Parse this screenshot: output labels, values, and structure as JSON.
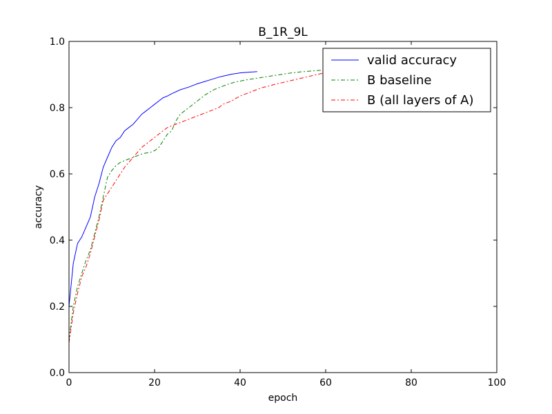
{
  "chart_data": {
    "type": "line",
    "title": "B_1R_9L",
    "xlabel": "epoch",
    "ylabel": "accuracy",
    "xlim": [
      0,
      100
    ],
    "ylim": [
      0.0,
      1.0
    ],
    "xticks": [
      "0",
      "20",
      "40",
      "60",
      "80",
      "100"
    ],
    "yticks": [
      "0.0",
      "0.2",
      "0.4",
      "0.6",
      "0.8",
      "1.0"
    ],
    "grid": false,
    "legend_position": "top-right",
    "series": [
      {
        "name": "valid accuracy",
        "color": "#0000ff",
        "style": "solid",
        "x": [
          0,
          1,
          2,
          3,
          4,
          5,
          6,
          7,
          8,
          9,
          10,
          11,
          12,
          13,
          14,
          15,
          16,
          17,
          18,
          19,
          20,
          21,
          22,
          23,
          24,
          25,
          26,
          27,
          28,
          29,
          30,
          31,
          32,
          33,
          34,
          35,
          36,
          37,
          38,
          39,
          40,
          41,
          42,
          43,
          44
        ],
        "y": [
          0.2,
          0.33,
          0.39,
          0.41,
          0.44,
          0.47,
          0.53,
          0.57,
          0.62,
          0.65,
          0.68,
          0.7,
          0.71,
          0.73,
          0.74,
          0.75,
          0.765,
          0.78,
          0.79,
          0.8,
          0.81,
          0.82,
          0.83,
          0.835,
          0.842,
          0.848,
          0.854,
          0.858,
          0.862,
          0.867,
          0.872,
          0.876,
          0.88,
          0.884,
          0.888,
          0.892,
          0.895,
          0.898,
          0.901,
          0.903,
          0.905,
          0.906,
          0.907,
          0.908,
          0.909
        ]
      },
      {
        "name": "B baseline",
        "color": "#008000",
        "style": "dashdot",
        "x": [
          0,
          1,
          2,
          3,
          4,
          5,
          6,
          7,
          8,
          9,
          10,
          11,
          12,
          13,
          14,
          15,
          16,
          17,
          18,
          19,
          20,
          21,
          22,
          23,
          24,
          25,
          26,
          27,
          28,
          29,
          30,
          31,
          32,
          33,
          34,
          35,
          36,
          37,
          38,
          39,
          40,
          41,
          42,
          43,
          44,
          45,
          46,
          47,
          48,
          49,
          50,
          51,
          52,
          53,
          54,
          55,
          56,
          57,
          58,
          59,
          60,
          61,
          62,
          63,
          64,
          65,
          66,
          67,
          68,
          69,
          70,
          71,
          72,
          73,
          74,
          75,
          76,
          77,
          78,
          79,
          80,
          81,
          82,
          83,
          84,
          85,
          86,
          87,
          88,
          89,
          90,
          91,
          92,
          93,
          94,
          95,
          96,
          97,
          98
        ],
        "y": [
          0.1,
          0.2,
          0.26,
          0.3,
          0.34,
          0.37,
          0.42,
          0.47,
          0.53,
          0.59,
          0.61,
          0.625,
          0.635,
          0.64,
          0.645,
          0.65,
          0.655,
          0.66,
          0.663,
          0.665,
          0.67,
          0.68,
          0.7,
          0.72,
          0.73,
          0.76,
          0.78,
          0.79,
          0.8,
          0.81,
          0.82,
          0.83,
          0.84,
          0.848,
          0.855,
          0.86,
          0.865,
          0.87,
          0.874,
          0.878,
          0.88,
          0.883,
          0.885,
          0.887,
          0.889,
          0.891,
          0.893,
          0.895,
          0.897,
          0.899,
          0.901,
          0.903,
          0.905,
          0.906,
          0.908,
          0.909,
          0.91,
          0.911,
          0.912,
          0.913,
          0.914,
          0.915,
          0.916,
          0.917,
          0.918,
          0.919,
          0.92,
          0.921,
          0.922,
          0.923,
          0.924,
          0.925,
          0.926,
          0.927,
          0.928,
          0.929,
          0.93,
          0.931,
          0.932,
          0.932,
          0.933,
          0.934,
          0.934,
          0.935,
          0.936,
          0.936,
          0.937,
          0.937,
          0.938,
          0.938,
          0.939,
          0.939,
          0.94,
          0.94,
          0.941,
          0.941,
          0.942,
          0.942,
          0.942
        ]
      },
      {
        "name": "B (all layers of A)",
        "color": "#ff0000",
        "style": "dashdot",
        "x": [
          0,
          1,
          2,
          3,
          4,
          5,
          6,
          7,
          8,
          9,
          10,
          11,
          12,
          13,
          14,
          15,
          16,
          17,
          18,
          19,
          20,
          21,
          22,
          23,
          24,
          25,
          26,
          27,
          28,
          29,
          30,
          31,
          32,
          33,
          34,
          35,
          36,
          37,
          38,
          39,
          40,
          41,
          42,
          43,
          44,
          45,
          46,
          47,
          48,
          49,
          50,
          51,
          52,
          53,
          54,
          55,
          56,
          57,
          58,
          59,
          60,
          61,
          62,
          63,
          64,
          65,
          66,
          67,
          68,
          69,
          70,
          71,
          72,
          73,
          74,
          75,
          76,
          77,
          78,
          79,
          80,
          81,
          82,
          83,
          84,
          85,
          86,
          87,
          88,
          89,
          90,
          91,
          92,
          93,
          94,
          95,
          96,
          97,
          98
        ],
        "y": [
          0.09,
          0.18,
          0.24,
          0.29,
          0.32,
          0.36,
          0.41,
          0.46,
          0.52,
          0.54,
          0.56,
          0.58,
          0.6,
          0.62,
          0.635,
          0.65,
          0.665,
          0.68,
          0.69,
          0.7,
          0.71,
          0.72,
          0.73,
          0.74,
          0.745,
          0.75,
          0.755,
          0.76,
          0.765,
          0.77,
          0.775,
          0.78,
          0.785,
          0.79,
          0.795,
          0.8,
          0.81,
          0.815,
          0.82,
          0.828,
          0.835,
          0.84,
          0.845,
          0.85,
          0.855,
          0.86,
          0.863,
          0.866,
          0.87,
          0.873,
          0.876,
          0.879,
          0.882,
          0.885,
          0.888,
          0.891,
          0.894,
          0.897,
          0.9,
          0.903,
          0.906,
          0.909,
          0.911,
          0.913,
          0.915,
          0.917,
          0.919,
          0.921,
          0.923,
          0.925,
          0.927,
          0.929,
          0.931,
          0.933,
          0.935,
          0.937,
          0.938,
          0.939,
          0.94,
          0.941,
          0.942,
          0.943,
          0.944,
          0.945,
          0.946,
          0.946,
          0.947,
          0.947,
          0.948,
          0.948,
          0.949,
          0.949,
          0.95,
          0.95,
          0.95,
          0.95,
          0.95,
          0.95,
          0.95
        ]
      }
    ]
  }
}
